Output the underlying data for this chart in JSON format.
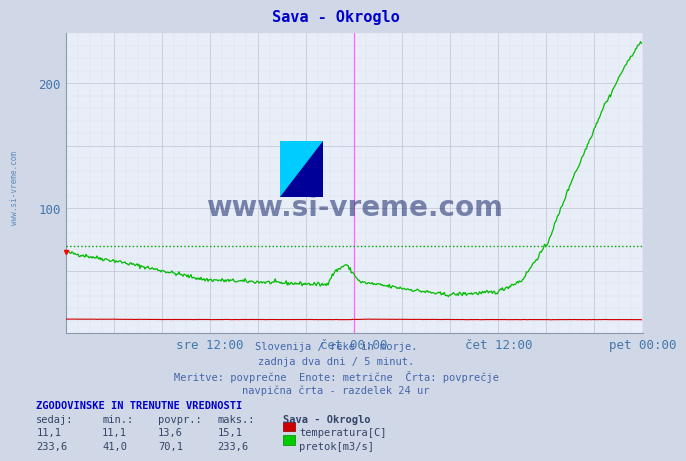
{
  "title": "Sava - Okroglo",
  "title_color": "#0000cc",
  "bg_color": "#d0d8e8",
  "plot_bg_color": "#e8eef8",
  "grid_color_major": "#c8c8d8",
  "grid_color_minor": "#dcdce8",
  "vline_color": "#ff66ff",
  "ylabel_color": "#4477aa",
  "xlim": [
    0,
    576
  ],
  "ylim": [
    0,
    240
  ],
  "yticks": [
    100,
    200
  ],
  "xtick_labels": [
    "sre 12:00",
    "čet 00:00",
    "čet 12:00",
    "pet 00:00"
  ],
  "xtick_positions": [
    144,
    288,
    432,
    576
  ],
  "vline_positions": [
    288,
    576
  ],
  "avg_line_value": 70.1,
  "avg_line_color": "#00aa00",
  "temp_color": "#cc0000",
  "flow_color": "#00bb00",
  "watermark_text": "www.si-vreme.com",
  "watermark_color": "#1a2a6c",
  "subtitle_lines": [
    "Slovenija / reke in morje.",
    "zadnja dva dni / 5 minut.",
    "Meritve: povprečne  Enote: metrične  Črta: povprečje",
    "navpična črta - razdelek 24 ur"
  ],
  "table_title": "ZGODOVINSKE IN TRENUTNE VREDNOSTI",
  "table_headers": [
    "sedaj:",
    "min.:",
    "povpr.:",
    "maks.:"
  ],
  "table_row1": [
    "11,1",
    "11,1",
    "13,6",
    "15,1"
  ],
  "table_row2": [
    "233,6",
    "41,0",
    "70,1",
    "233,6"
  ],
  "legend_label1": "temperatura[C]",
  "legend_label2": "pretok[m3/s]",
  "legend_col_label": "Sava - Okroglo",
  "side_text": "www.si-vreme.com"
}
